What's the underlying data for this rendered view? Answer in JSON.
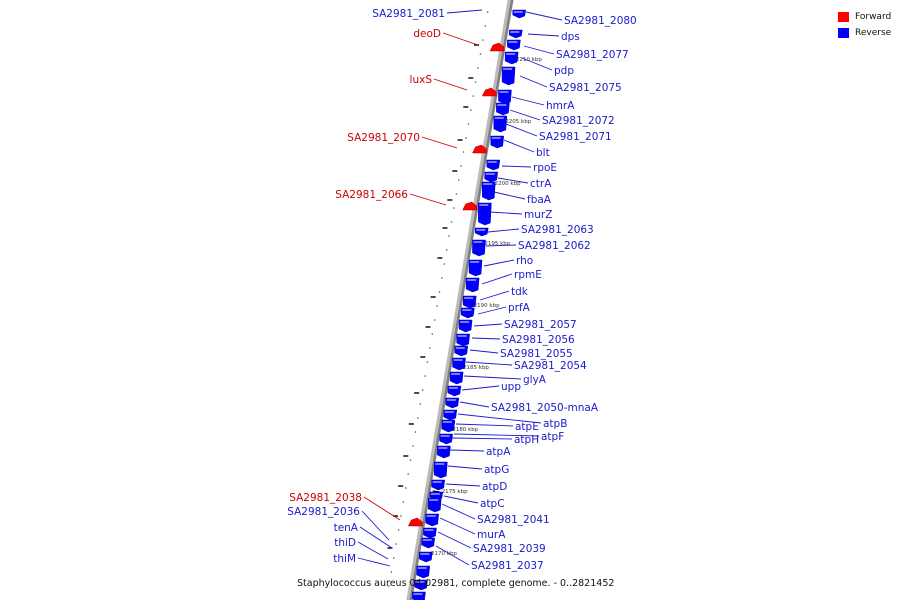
{
  "caption": "Staphylococcus aureus 04-02981, complete genome. - 0..2821452",
  "legend": [
    {
      "label": "Forward",
      "color": "#ff0000"
    },
    {
      "label": "Reverse",
      "color": "#0000ff"
    }
  ],
  "colors": {
    "forward": "#ff0000",
    "reverse": "#0000ff",
    "backbone": "#808080",
    "label_forward": "#cc0000",
    "label_reverse": "#1a1acc"
  },
  "ticks": [
    "2210 kbp",
    "2205 kbp",
    "2200 kbp",
    "2195 kbp",
    "2190 kbp",
    "2185 kbp",
    "2180 kbp",
    "2175 kbp",
    "2170 kbp"
  ],
  "forward_genes": [
    "SA2981_2081",
    "deoD",
    "luxS",
    "SA2981_2070",
    "SA2981_2066",
    "SA2981_2038",
    "SA2981_2036",
    "tenA",
    "thiD",
    "thiM"
  ],
  "reverse_genes": [
    "SA2981_2080",
    "dps",
    "SA2981_2077",
    "pdp",
    "SA2981_2075",
    "hmrA",
    "SA2981_2072",
    "SA2981_2071",
    "blt",
    "rpoE",
    "ctrA",
    "fbaA",
    "murZ",
    "SA2981_2063",
    "SA2981_2062",
    "rho",
    "rpmE",
    "tdk",
    "prfA",
    "SA2981_2057",
    "SA2981_2056",
    "SA2981_2055",
    "SA2981_2054",
    "glyA",
    "upp",
    "SA2981_2050-mnaA",
    "atpB",
    "atpE",
    "atpF",
    "atpH",
    "atpA",
    "atpG",
    "atpD",
    "atpC",
    "SA2981_2041",
    "murA",
    "SA2981_2039",
    "SA2981_2037"
  ]
}
